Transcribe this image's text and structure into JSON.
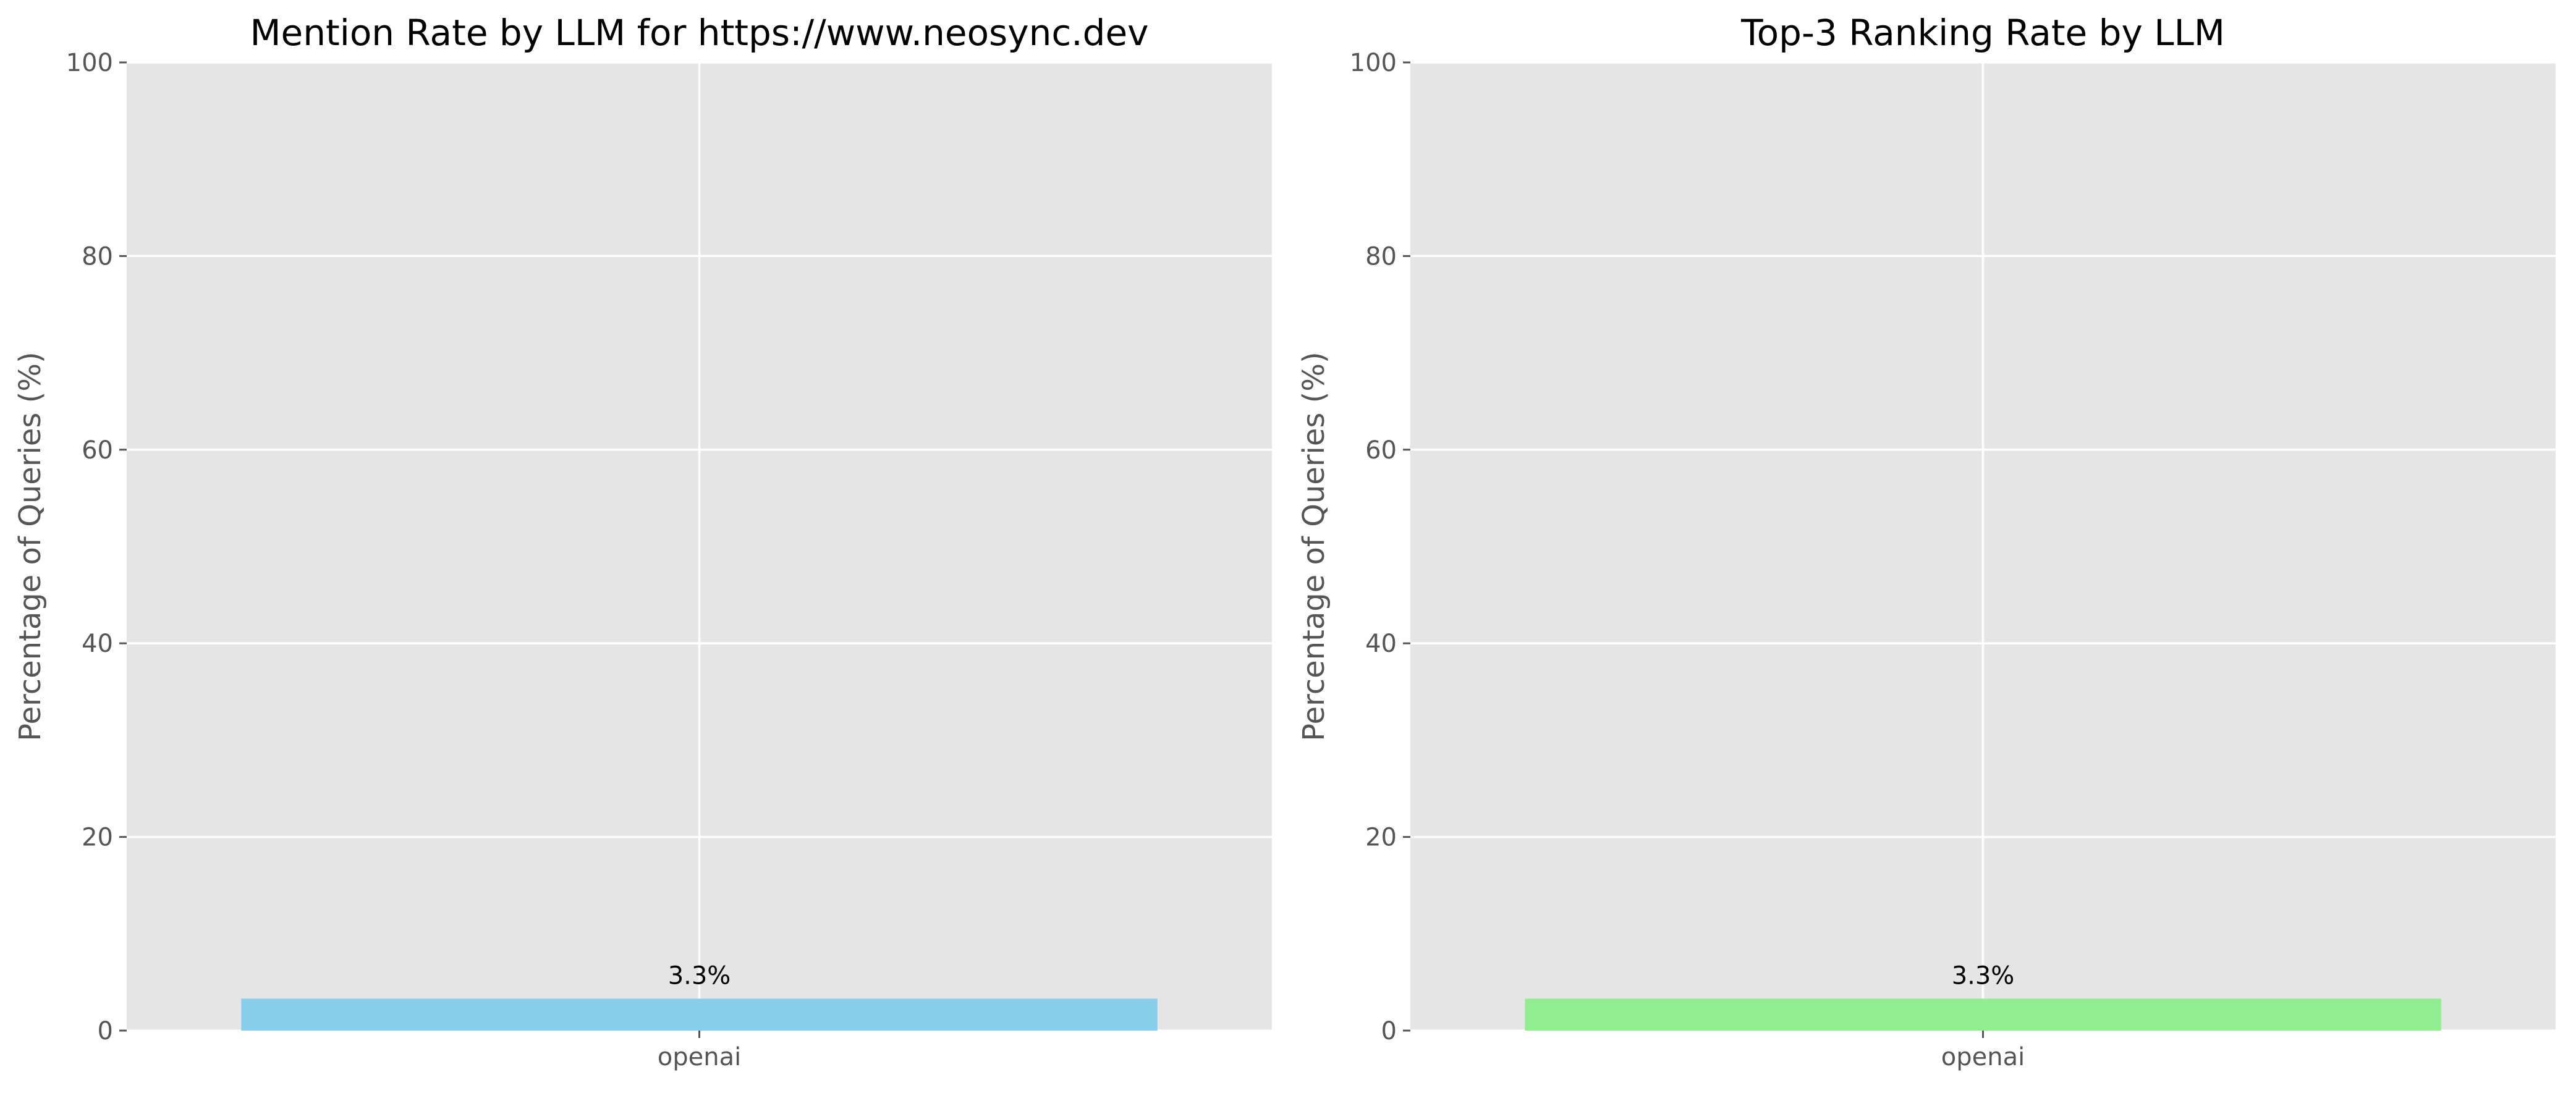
{
  "chart_data": [
    {
      "type": "bar",
      "title": "Mention Rate by LLM for https://www.neosync.dev",
      "xlabel": "",
      "ylabel": "Percentage of Queries (%)",
      "categories": [
        "openai"
      ],
      "values": [
        3.3
      ],
      "data_labels": [
        "3.3%"
      ],
      "ylim": [
        0,
        100
      ],
      "yticks": [
        "0",
        "20",
        "40",
        "60",
        "80",
        "100"
      ],
      "bar_color": "#87ceeb",
      "grid": true,
      "legend": "none"
    },
    {
      "type": "bar",
      "title": "Top-3 Ranking Rate by LLM",
      "xlabel": "",
      "ylabel": "Percentage of Queries (%)",
      "categories": [
        "openai"
      ],
      "values": [
        3.3
      ],
      "data_labels": [
        "3.3%"
      ],
      "ylim": [
        0,
        100
      ],
      "yticks": [
        "0",
        "20",
        "40",
        "60",
        "80",
        "100"
      ],
      "bar_color": "#90ee90",
      "grid": true,
      "legend": "none"
    }
  ]
}
